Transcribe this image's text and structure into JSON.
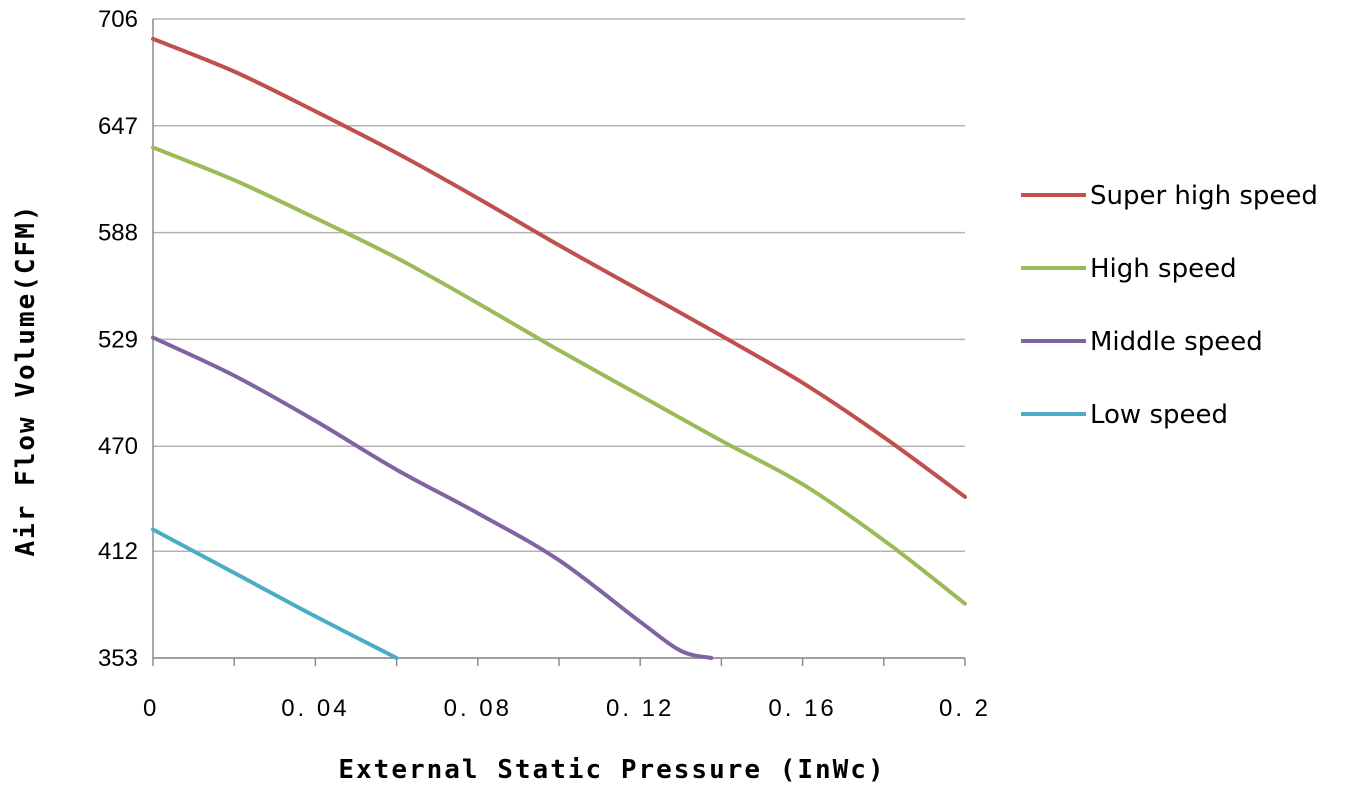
{
  "chart_data": {
    "type": "line",
    "title": "",
    "xlabel": "External Static Pressure (InWc)",
    "ylabel": "Air Flow Volume(CFM)",
    "xlim": [
      0,
      0.2
    ],
    "ylim": [
      353,
      706
    ],
    "x_ticks": [
      "0",
      "0. 04",
      "0. 08",
      "0. 12",
      "0. 16",
      "0. 2"
    ],
    "x_tick_values": [
      0,
      0.04,
      0.08,
      0.12,
      0.16,
      0.2
    ],
    "y_ticks": [
      "706",
      "647",
      "588",
      "529",
      "470",
      "412",
      "353"
    ],
    "y_tick_values": [
      706,
      647,
      588,
      529,
      470,
      412,
      353
    ],
    "grid": "horizontal",
    "legend_position": "right",
    "series": [
      {
        "name": "Super high speed",
        "color": "#c0504d",
        "x": [
          0,
          0.02,
          0.04,
          0.06,
          0.08,
          0.1,
          0.12,
          0.14,
          0.16,
          0.18,
          0.2
        ],
        "y": [
          695,
          677,
          655,
          632,
          607,
          581,
          556,
          531,
          505,
          475,
          442
        ]
      },
      {
        "name": "High speed",
        "color": "#9bbb59",
        "x": [
          0,
          0.02,
          0.04,
          0.06,
          0.08,
          0.1,
          0.12,
          0.14,
          0.16,
          0.18,
          0.2
        ],
        "y": [
          635,
          617,
          596,
          574,
          549,
          523,
          498,
          473,
          449,
          418,
          383
        ]
      },
      {
        "name": "Middle speed",
        "color": "#8064a2",
        "x": [
          0,
          0.02,
          0.04,
          0.06,
          0.08,
          0.1,
          0.12,
          0.13,
          0.1375
        ],
        "y": [
          530,
          509,
          484,
          457,
          433,
          407,
          373,
          357,
          353
        ]
      },
      {
        "name": "Low speed",
        "color": "#4bacc6",
        "x": [
          0,
          0.02,
          0.04,
          0.06
        ],
        "y": [
          424,
          400,
          376,
          353
        ]
      }
    ]
  }
}
